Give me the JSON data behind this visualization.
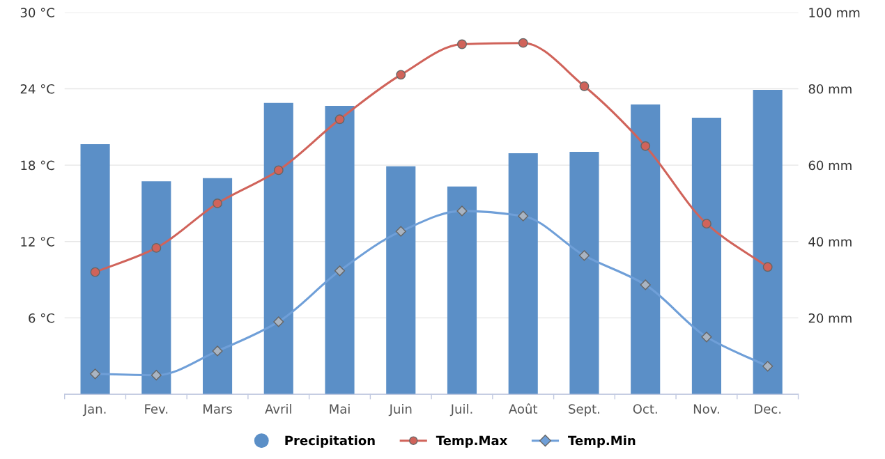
{
  "chart_data": {
    "type": "bar",
    "categories": [
      "Jan.",
      "Fev.",
      "Mars",
      "Avril",
      "Mai",
      "Juin",
      "Juil.",
      "Août",
      "Sept.",
      "Oct.",
      "Nov.",
      "Dec."
    ],
    "series": [
      {
        "name": "Precipitation",
        "axis": "y2",
        "color": "#5b8fc7",
        "values": [
          65.5,
          55.8,
          56.6,
          76.3,
          75.5,
          59.7,
          54.4,
          63.1,
          63.5,
          75.9,
          72.4,
          79.7
        ]
      },
      {
        "name": "Temp.Max",
        "type": "line",
        "axis": "y",
        "color": "#d0635a",
        "marker": "circle",
        "values": [
          9.6,
          11.5,
          15.0,
          17.6,
          21.6,
          25.1,
          27.5,
          27.6,
          24.2,
          19.5,
          13.4,
          10.0
        ]
      },
      {
        "name": "Temp.Min",
        "type": "line",
        "axis": "y",
        "color": "#6f9fd8",
        "marker": "diamond",
        "values": [
          1.6,
          1.5,
          3.4,
          5.7,
          9.7,
          12.8,
          14.4,
          14.0,
          10.9,
          8.6,
          4.5,
          2.2
        ]
      }
    ],
    "ylim": [
      0,
      30
    ],
    "yticks": [
      {
        "value": 0,
        "label": null
      },
      {
        "value": 6,
        "label": "6 °C"
      },
      {
        "value": 12,
        "label": "12 °C"
      },
      {
        "value": 18,
        "label": "18 °C"
      },
      {
        "value": 24,
        "label": "24 °C"
      },
      {
        "value": 30,
        "label": "30 °C"
      }
    ],
    "y2lim": [
      0,
      100
    ],
    "y2ticks": [
      {
        "value": 0,
        "label": null
      },
      {
        "value": 20,
        "label": "20 mm"
      },
      {
        "value": 40,
        "label": "40 mm"
      },
      {
        "value": 60,
        "label": "60 mm"
      },
      {
        "value": 80,
        "label": "80 mm"
      },
      {
        "value": 100,
        "label": "100 mm"
      }
    ],
    "grid": "y",
    "legend": "bottom",
    "line_style": "solid"
  }
}
